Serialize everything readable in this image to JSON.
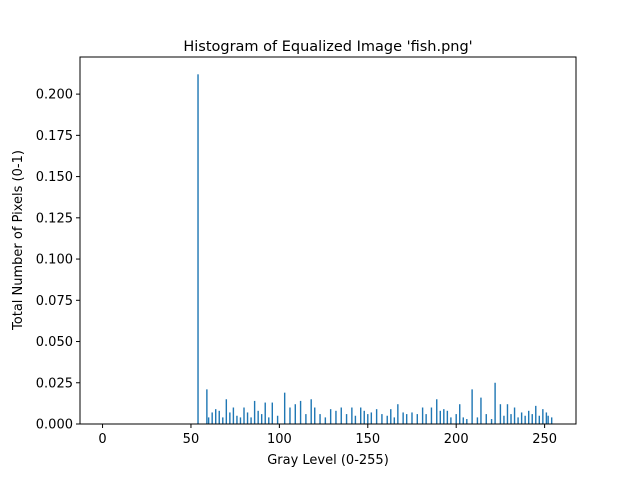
{
  "chart_data": {
    "type": "bar",
    "title": "Histogram of Equalized Image 'fish.png'",
    "xlabel": "Gray Level (0-255)",
    "ylabel": "Total Number of Pixels (0-1)",
    "xlim": [
      -12.75,
      267.75
    ],
    "ylim": [
      0,
      0.2225
    ],
    "xticks": [
      0,
      50,
      100,
      150,
      200,
      250
    ],
    "yticks": [
      0.0,
      0.025,
      0.05,
      0.075,
      0.1,
      0.125,
      0.15,
      0.175,
      0.2
    ],
    "ytick_labels": [
      "0.000",
      "0.025",
      "0.050",
      "0.075",
      "0.100",
      "0.125",
      "0.150",
      "0.175",
      "0.200"
    ],
    "bar_color": "#1f77b4",
    "grid": false,
    "x": [
      54,
      59,
      60,
      62,
      64,
      66,
      68,
      70,
      72,
      74,
      76,
      78,
      80,
      82,
      84,
      86,
      88,
      90,
      92,
      94,
      96,
      99,
      103,
      106,
      109,
      112,
      115,
      118,
      120,
      123,
      126,
      129,
      132,
      135,
      138,
      141,
      143,
      146,
      148,
      150,
      152,
      155,
      158,
      161,
      163,
      165,
      167,
      170,
      172,
      175,
      178,
      181,
      183,
      186,
      189,
      191,
      193,
      195,
      197,
      200,
      202,
      204,
      206,
      209,
      212,
      214,
      217,
      220,
      222,
      225,
      227,
      229,
      231,
      233,
      235,
      237,
      239,
      241,
      243,
      245,
      247,
      249,
      251,
      252,
      254
    ],
    "values": [
      0.212,
      0.021,
      0.004,
      0.007,
      0.009,
      0.008,
      0.004,
      0.015,
      0.007,
      0.01,
      0.005,
      0.004,
      0.01,
      0.007,
      0.004,
      0.014,
      0.008,
      0.006,
      0.013,
      0.004,
      0.013,
      0.005,
      0.019,
      0.01,
      0.012,
      0.014,
      0.006,
      0.015,
      0.01,
      0.006,
      0.004,
      0.009,
      0.008,
      0.01,
      0.006,
      0.01,
      0.005,
      0.01,
      0.008,
      0.006,
      0.007,
      0.009,
      0.006,
      0.005,
      0.009,
      0.004,
      0.012,
      0.007,
      0.006,
      0.007,
      0.006,
      0.01,
      0.006,
      0.01,
      0.015,
      0.008,
      0.009,
      0.008,
      0.004,
      0.006,
      0.012,
      0.004,
      0.003,
      0.021,
      0.004,
      0.016,
      0.006,
      0.003,
      0.025,
      0.012,
      0.005,
      0.012,
      0.006,
      0.01,
      0.004,
      0.007,
      0.005,
      0.008,
      0.006,
      0.011,
      0.005,
      0.009,
      0.007,
      0.005,
      0.004
    ]
  }
}
